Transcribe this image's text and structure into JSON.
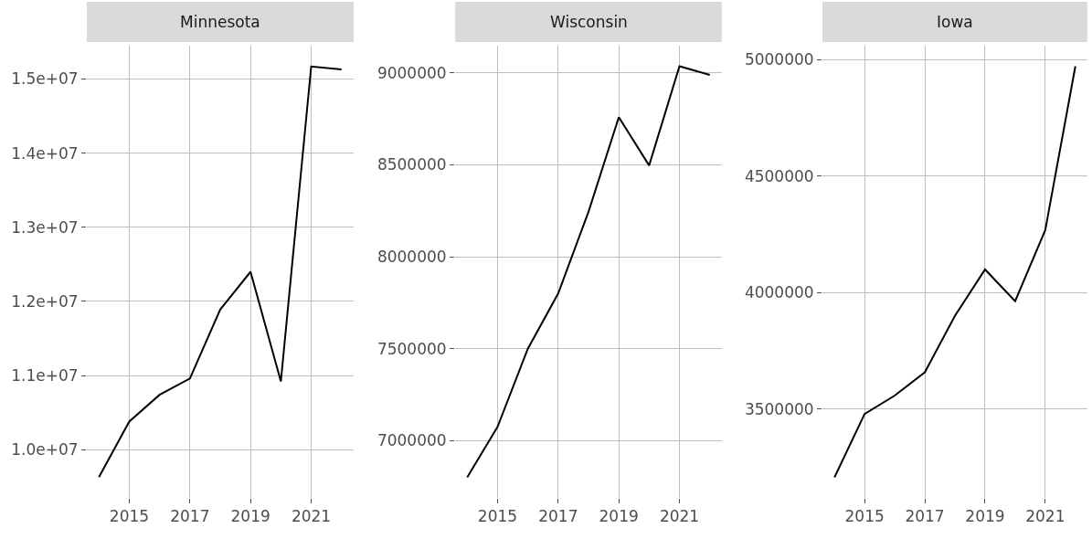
{
  "chart_data": [
    {
      "type": "line",
      "title": "Minnesota",
      "x": [
        2014,
        2015,
        2016,
        2017,
        2018,
        2019,
        2020,
        2021,
        2022
      ],
      "series": [
        {
          "color": "#000000",
          "values": [
            9630000,
            10380000,
            10740000,
            10960000,
            11890000,
            12400000,
            10920000,
            15170000,
            15130000
          ]
        }
      ],
      "xlim": [
        2013.6,
        2022.4
      ],
      "xticks": [
        2015,
        2017,
        2019,
        2021
      ],
      "ylim": [
        9350000,
        15450000
      ],
      "yticks": [
        {
          "value": 10000000,
          "label": "1.0e+07"
        },
        {
          "value": 11000000,
          "label": "1.1e+07"
        },
        {
          "value": 12000000,
          "label": "1.2e+07"
        },
        {
          "value": 13000000,
          "label": "1.3e+07"
        },
        {
          "value": 14000000,
          "label": "1.4e+07"
        },
        {
          "value": 15000000,
          "label": "1.5e+07"
        }
      ],
      "grid": true,
      "marker": "none",
      "line_style": "solid"
    },
    {
      "type": "line",
      "title": "Wisconsin",
      "x": [
        2014,
        2015,
        2016,
        2017,
        2018,
        2019,
        2020,
        2021,
        2022
      ],
      "series": [
        {
          "color": "#000000",
          "values": [
            6800000,
            7074000,
            7500000,
            7800000,
            8245000,
            8760000,
            8497000,
            9037000,
            8990000
          ]
        }
      ],
      "xlim": [
        2013.6,
        2022.4
      ],
      "xticks": [
        2015,
        2017,
        2019,
        2021
      ],
      "ylim": [
        6688000,
        9149000
      ],
      "yticks": [
        7000000,
        7500000,
        8000000,
        8500000,
        9000000
      ],
      "grid": true,
      "marker": "none",
      "line_style": "solid"
    },
    {
      "type": "line",
      "title": "Iowa",
      "x": [
        2014,
        2015,
        2016,
        2017,
        2018,
        2019,
        2020,
        2021,
        2022
      ],
      "series": [
        {
          "color": "#000000",
          "values": [
            3207000,
            3479000,
            3558000,
            3658000,
            3900000,
            4099000,
            3963000,
            4268000,
            4971000
          ]
        }
      ],
      "xlim": [
        2013.6,
        2022.4
      ],
      "xticks": [
        2015,
        2017,
        2019,
        2021
      ],
      "ylim": [
        3119000,
        5059000
      ],
      "yticks": [
        3500000,
        4000000,
        4500000,
        5000000
      ],
      "grid": true,
      "marker": "none",
      "line_style": "solid"
    }
  ]
}
